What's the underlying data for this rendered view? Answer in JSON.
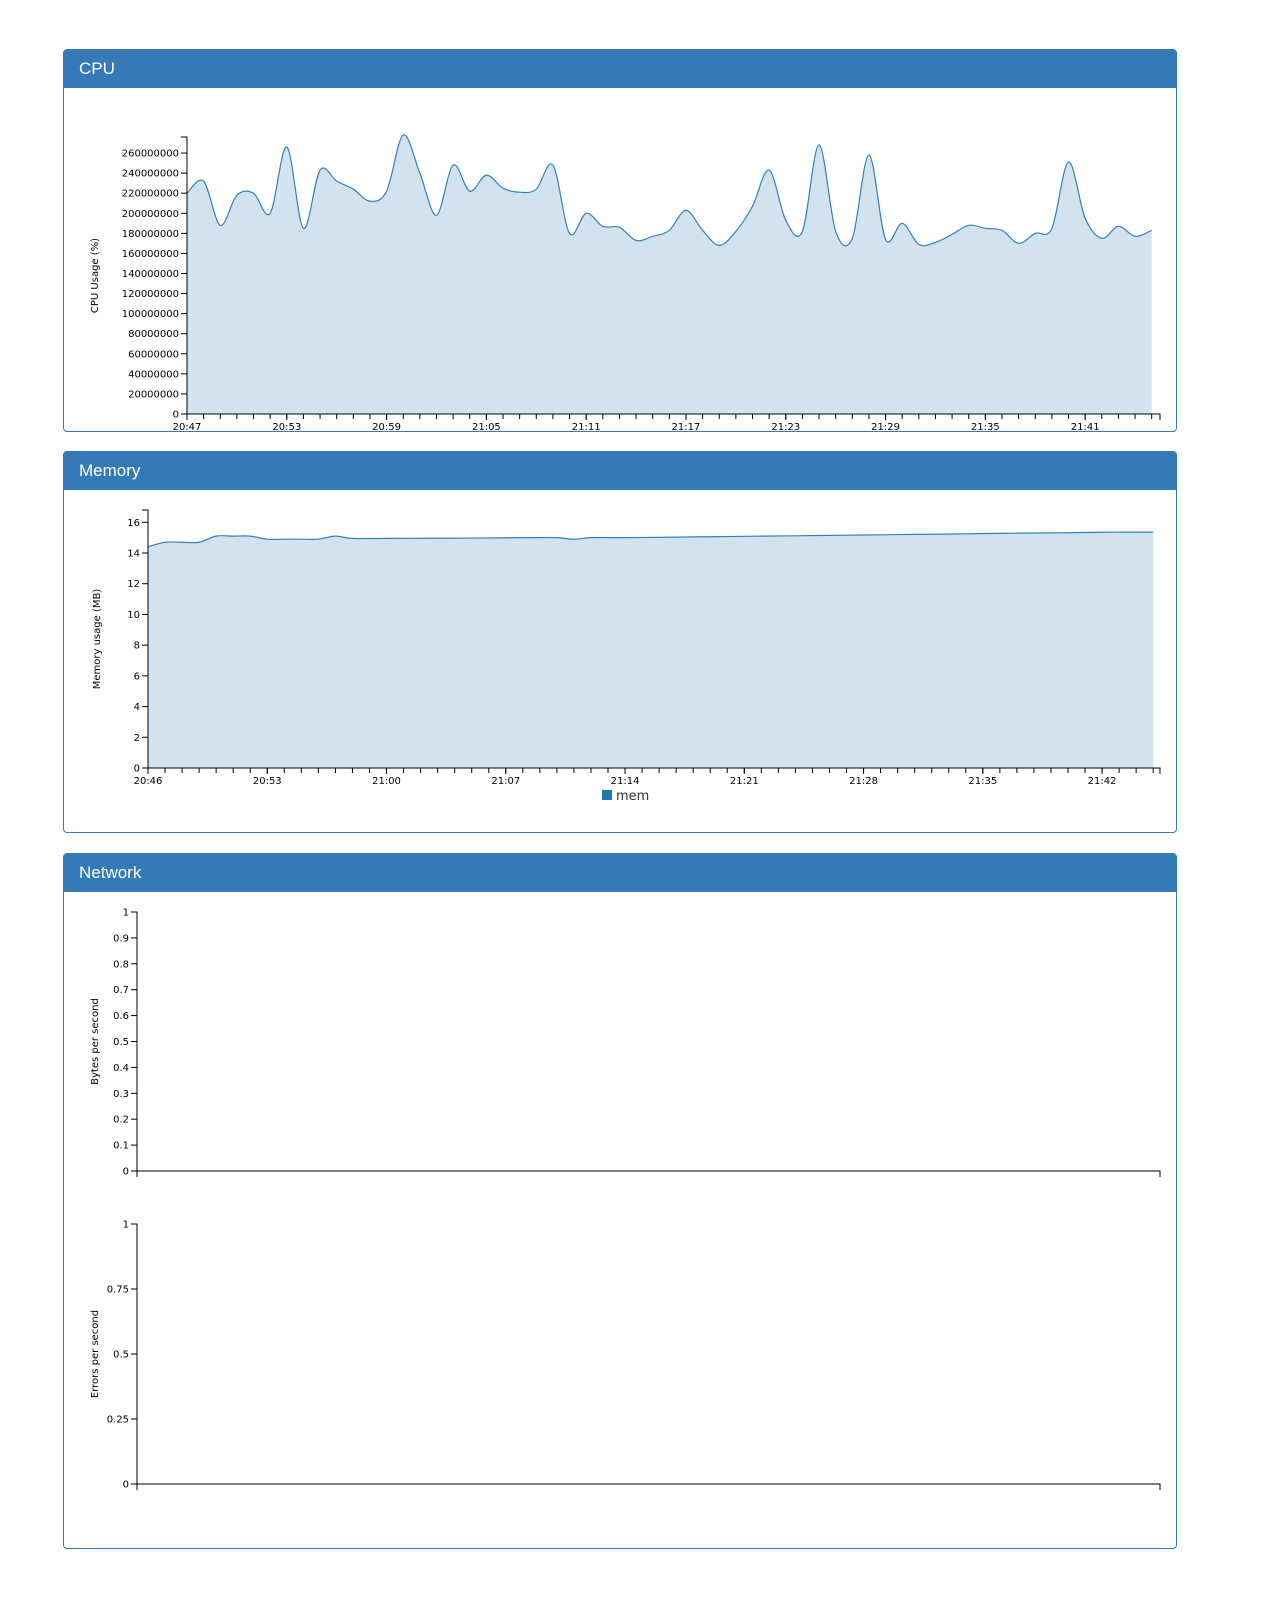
{
  "panels": {
    "cpu": {
      "title": "CPU"
    },
    "memory": {
      "title": "Memory"
    },
    "network": {
      "title": "Network"
    }
  },
  "colors": {
    "line": "#3182bd",
    "fill": "#d2e3ef",
    "legend": "#1f77b4",
    "panel": "#337ab7"
  },
  "chart_data": [
    {
      "id": "cpu",
      "type": "area",
      "ylabel": "CPU Usage (%)",
      "ylim": [
        0,
        276000000
      ],
      "yticks": [
        0,
        20000000,
        40000000,
        60000000,
        80000000,
        100000000,
        120000000,
        140000000,
        160000000,
        180000000,
        200000000,
        220000000,
        240000000,
        260000000
      ],
      "xlim": [
        0,
        58.5
      ],
      "xticks_labeled": [
        {
          "x": 0,
          "label": "20:47"
        },
        {
          "x": 6,
          "label": "20:53"
        },
        {
          "x": 12,
          "label": "20:59"
        },
        {
          "x": 18,
          "label": "21:05"
        },
        {
          "x": 24,
          "label": "21:11"
        },
        {
          "x": 30,
          "label": "21:17"
        },
        {
          "x": 36,
          "label": "21:23"
        },
        {
          "x": 42,
          "label": "21:29"
        },
        {
          "x": 48,
          "label": "21:35"
        },
        {
          "x": 54,
          "label": "21:41"
        }
      ],
      "grid": false,
      "legend": "bottom-center",
      "series": [
        {
          "name": "cpu",
          "x": [
            0,
            1,
            2,
            3,
            4,
            5,
            6,
            7,
            8,
            9,
            10,
            11,
            12,
            13,
            14,
            15,
            16,
            17,
            18,
            19,
            20,
            21,
            22,
            23,
            24,
            25,
            26,
            27,
            28,
            29,
            30,
            31,
            32,
            33,
            34,
            35,
            36,
            37,
            38,
            39,
            40,
            41,
            42,
            43,
            44,
            45,
            46,
            47,
            48,
            49,
            50,
            51,
            52,
            53,
            54,
            55,
            56,
            57,
            58
          ],
          "values": [
            220000000,
            232000000,
            188000000,
            218000000,
            220000000,
            200000000,
            266000000,
            185000000,
            243000000,
            232000000,
            224000000,
            212000000,
            222000000,
            278000000,
            240000000,
            198000000,
            248000000,
            222000000,
            238000000,
            225000000,
            221000000,
            224000000,
            248000000,
            180000000,
            200000000,
            187000000,
            186000000,
            173000000,
            177000000,
            183000000,
            203000000,
            183000000,
            168000000,
            182000000,
            207000000,
            243000000,
            193000000,
            182000000,
            268000000,
            182000000,
            175000000,
            258000000,
            174000000,
            190000000,
            169000000,
            171000000,
            179000000,
            188000000,
            185000000,
            183000000,
            170000000,
            180000000,
            185000000,
            251000000,
            195000000,
            175000000,
            187000000,
            177000000,
            183000000
          ]
        }
      ]
    },
    {
      "id": "mem",
      "type": "area",
      "ylabel": "Memory usage (MB)",
      "ylim": [
        0,
        16.8
      ],
      "yticks": [
        0,
        2,
        4,
        6,
        8,
        10,
        12,
        14,
        16
      ],
      "xlim": [
        0,
        59.4
      ],
      "xticks_labeled": [
        {
          "x": 0,
          "label": "20:46"
        },
        {
          "x": 7,
          "label": "20:53"
        },
        {
          "x": 14,
          "label": "21:00"
        },
        {
          "x": 21,
          "label": "21:07"
        },
        {
          "x": 28,
          "label": "21:14"
        },
        {
          "x": 35,
          "label": "21:21"
        },
        {
          "x": 42,
          "label": "21:28"
        },
        {
          "x": 49,
          "label": "21:35"
        },
        {
          "x": 56,
          "label": "21:42"
        }
      ],
      "grid": false,
      "legend": "bottom-center",
      "series": [
        {
          "name": "mem",
          "x": [
            0,
            1,
            2,
            3,
            4,
            5,
            6,
            7,
            8,
            9,
            10,
            11,
            12,
            14,
            16,
            18,
            20,
            22,
            23,
            24,
            25,
            26,
            28,
            30,
            32,
            34,
            36,
            38,
            40,
            42,
            44,
            46,
            48,
            50,
            52,
            54,
            56,
            58,
            59
          ],
          "values": [
            14.4,
            14.7,
            14.7,
            14.7,
            15.1,
            15.1,
            15.1,
            14.9,
            14.9,
            14.9,
            14.9,
            15.1,
            14.95,
            14.95,
            14.96,
            14.97,
            14.98,
            15.0,
            15.0,
            15.0,
            14.9,
            15.0,
            15.0,
            15.02,
            15.05,
            15.07,
            15.1,
            15.12,
            15.15,
            15.17,
            15.2,
            15.22,
            15.25,
            15.28,
            15.3,
            15.32,
            15.35,
            15.36,
            15.36
          ]
        }
      ]
    },
    {
      "id": "net-bytes",
      "type": "line",
      "ylabel": "Bytes per second",
      "ylim": [
        0,
        1
      ],
      "yticks": [
        "0",
        "0.1",
        "0.2",
        "0.3",
        "0.4",
        "0.5",
        "0.6",
        "0.7",
        "0.8",
        "0.9",
        "1"
      ],
      "grid": false,
      "series": []
    },
    {
      "id": "net-errors",
      "type": "line",
      "ylabel": "Errors per second",
      "ylim": [
        0,
        1
      ],
      "yticks": [
        "0",
        "0.25",
        "0.5",
        "0.75",
        "1"
      ],
      "grid": false,
      "series": []
    }
  ]
}
